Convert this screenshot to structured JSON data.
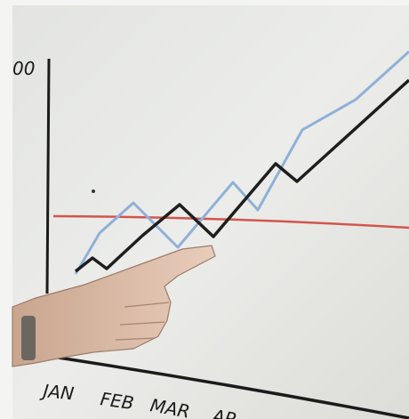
{
  "axis_label": "00",
  "months": [
    "JAN",
    "FEB",
    "MAR",
    "AP"
  ]
}
